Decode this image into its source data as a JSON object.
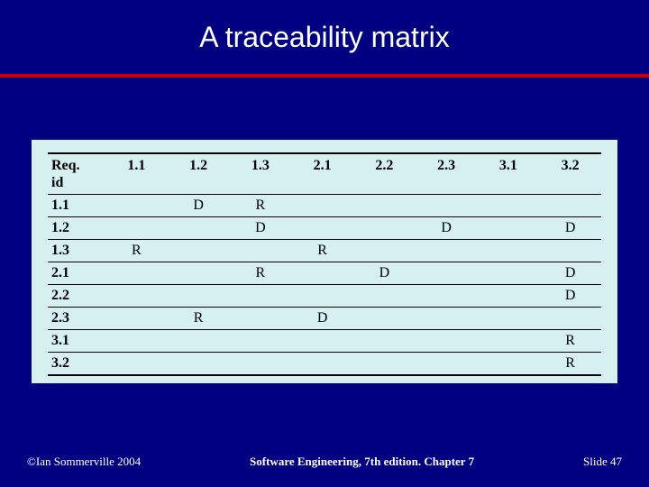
{
  "slide": {
    "title": "A traceability matrix",
    "background_color": "#000080",
    "divider_color": "#cc0000",
    "table_background": "#d6f0f0",
    "title_color": "#ffffff",
    "title_fontsize": 32
  },
  "table": {
    "type": "table",
    "header_label": "Req.\nid",
    "columns": [
      "1.1",
      "1.2",
      "1.3",
      "2.1",
      "2.2",
      "2.3",
      "3.1",
      "3.2"
    ],
    "rows": [
      {
        "id": "1.1",
        "cells": [
          "",
          "D",
          "R",
          "",
          "",
          "",
          "",
          ""
        ]
      },
      {
        "id": "1.2",
        "cells": [
          "",
          "",
          "D",
          "",
          "",
          "D",
          "",
          "D"
        ]
      },
      {
        "id": "1.3",
        "cells": [
          "R",
          "",
          "",
          "R",
          "",
          "",
          "",
          ""
        ]
      },
      {
        "id": "2.1",
        "cells": [
          "",
          "",
          "R",
          "",
          "D",
          "",
          "",
          "D"
        ]
      },
      {
        "id": "2.2",
        "cells": [
          "",
          "",
          "",
          "",
          "",
          "",
          "",
          "D"
        ]
      },
      {
        "id": "2.3",
        "cells": [
          "",
          "R",
          "",
          "D",
          "",
          "",
          "",
          ""
        ]
      },
      {
        "id": "3.1",
        "cells": [
          "",
          "",
          "",
          "",
          "",
          "",
          "",
          "R"
        ]
      },
      {
        "id": "3.2",
        "cells": [
          "",
          "",
          "",
          "",
          "",
          "",
          "",
          "R"
        ]
      }
    ],
    "font_family": "Times New Roman",
    "cell_fontsize": 16,
    "border_color": "#000000"
  },
  "footer": {
    "left": "©Ian Sommerville 2004",
    "center": "Software Engineering, 7th edition. Chapter 7",
    "right": "Slide 47",
    "text_color": "#ffffff",
    "fontsize": 13
  }
}
